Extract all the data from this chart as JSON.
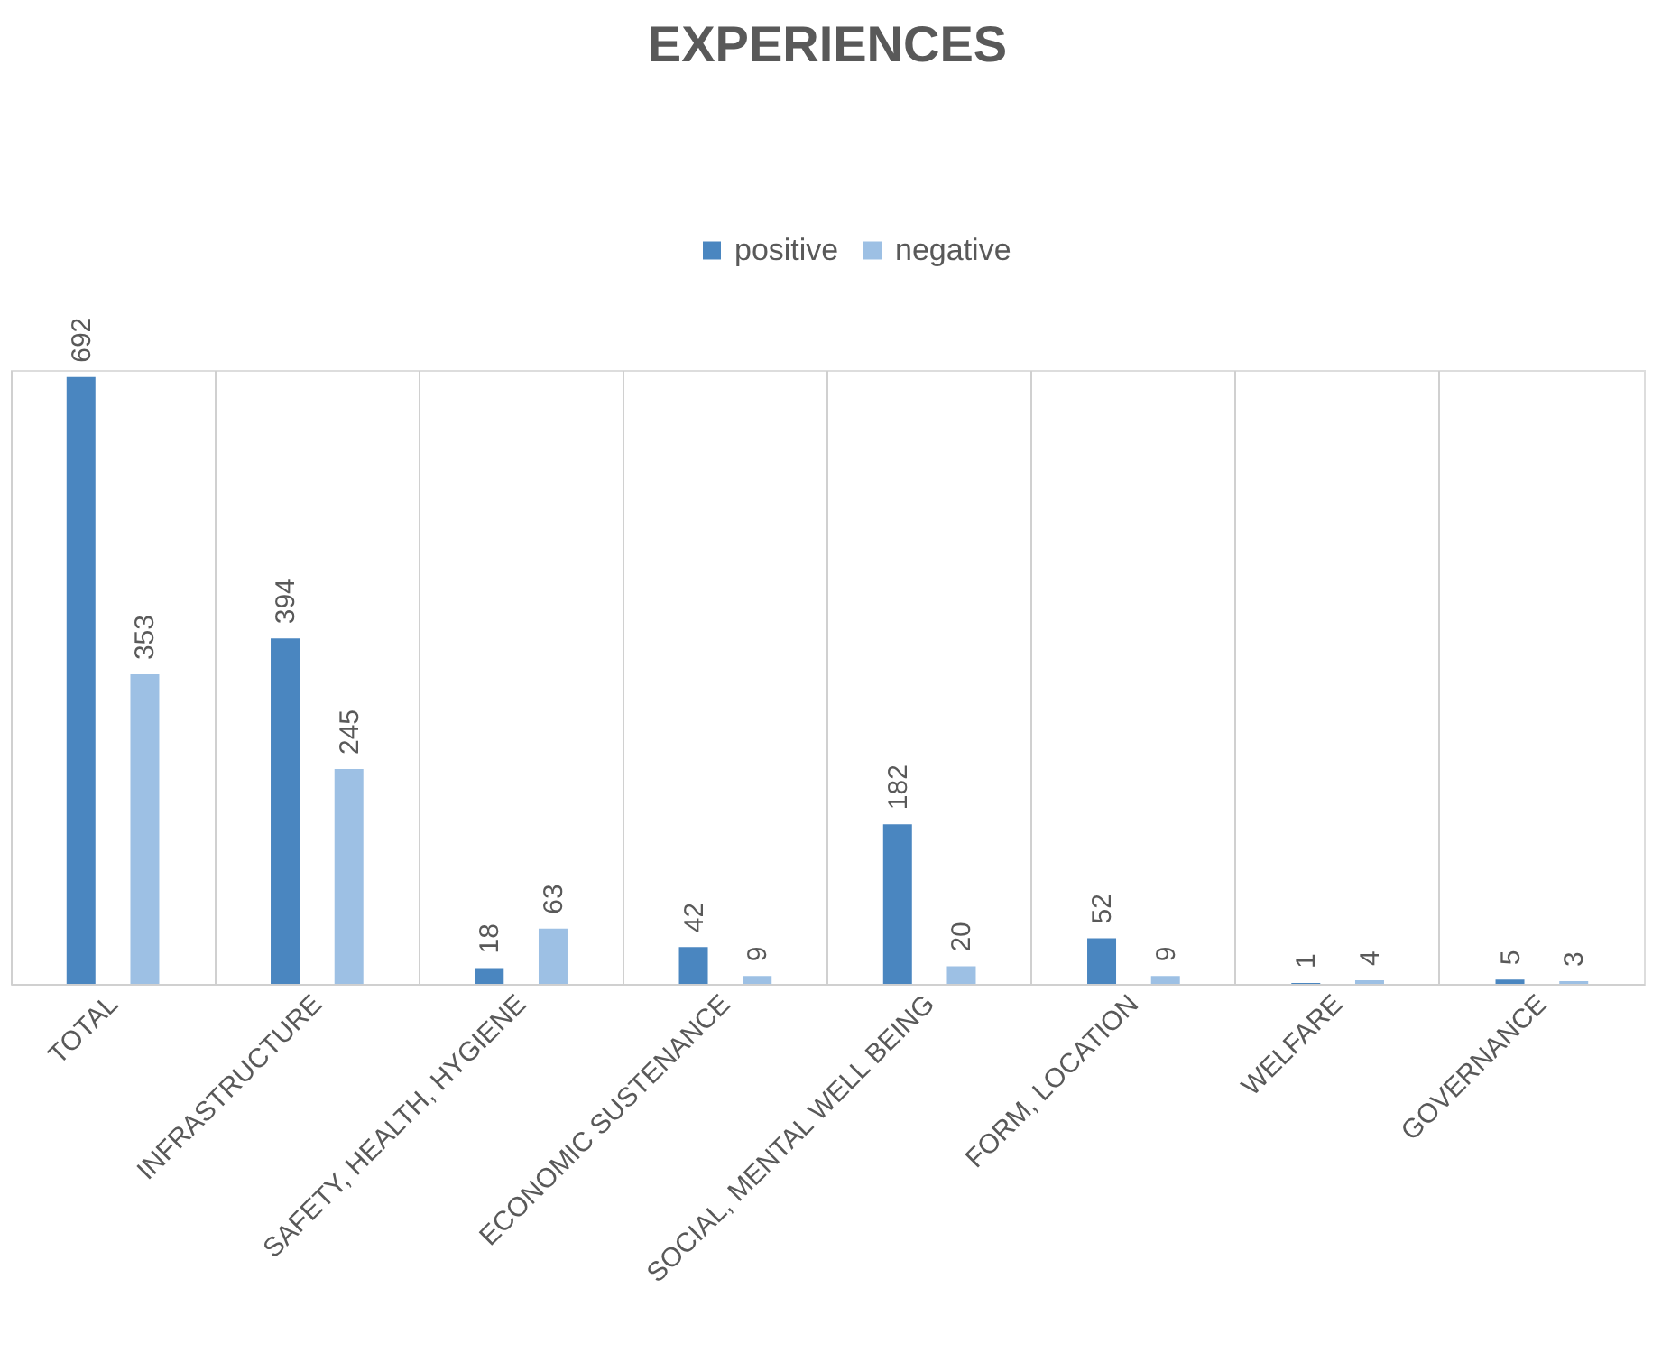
{
  "chart_data": {
    "type": "bar",
    "title": "EXPERIENCES",
    "categories": [
      "TOTAL",
      "INFRASTRUCTURE",
      "SAFETY, HEALTH, HYGIENE",
      "ECONOMIC SUSTENANCE",
      "SOCIAL, MENTAL WELL BEING",
      "FORM, LOCATION",
      "WELFARE",
      "GOVERNANCE"
    ],
    "series": [
      {
        "name": "positive",
        "color": "#4a86c0",
        "values": [
          692,
          394,
          18,
          42,
          182,
          52,
          1,
          5
        ]
      },
      {
        "name": "negative",
        "color": "#9dc0e4",
        "values": [
          353,
          245,
          63,
          9,
          20,
          9,
          4,
          3
        ]
      }
    ],
    "data_labels": true,
    "grid": "x",
    "legend": "top"
  }
}
